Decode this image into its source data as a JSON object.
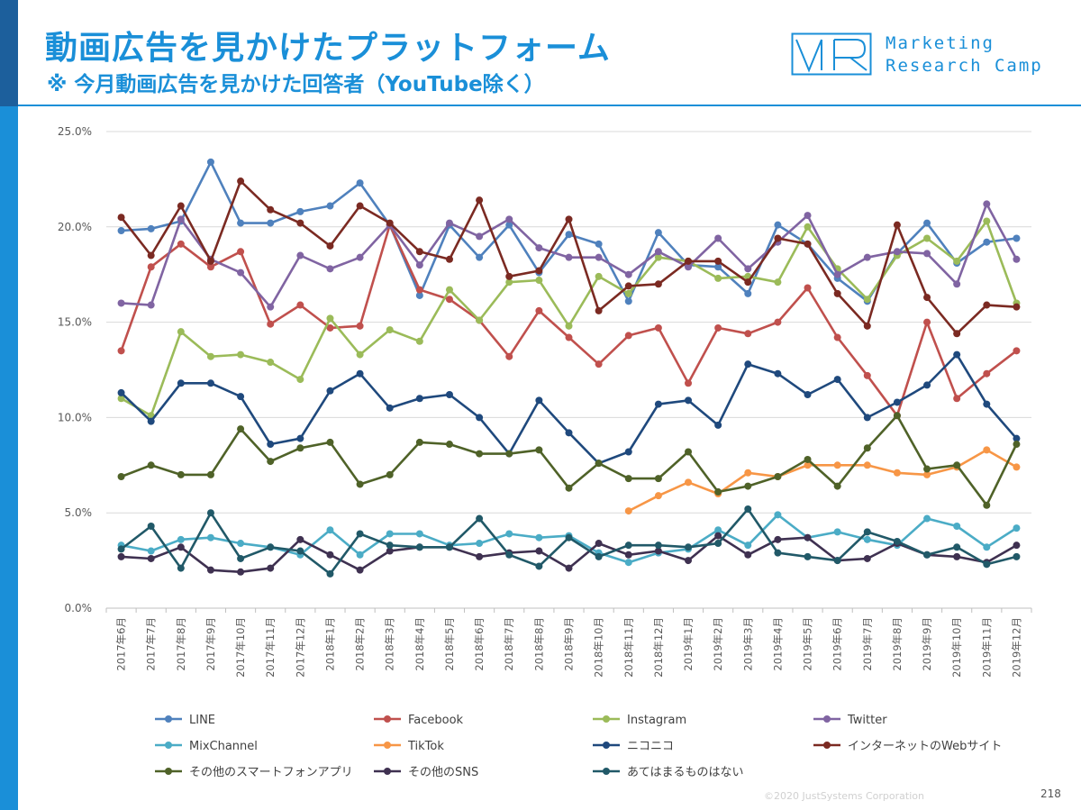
{
  "header": {
    "title": "動画広告を見かけたプラットフォーム",
    "subtitle": "※ 今月動画広告を見かけた回答者（YouTube除く）"
  },
  "logo": {
    "mark": "MR",
    "line1": "Marketing",
    "line2": "Research Camp"
  },
  "footer": {
    "copyright": "©2020 JustSystems Corporation",
    "page": "218"
  },
  "colors": {
    "accent": "#1a8fd8",
    "accent_dark": "#1c5f9c"
  },
  "chart_data": {
    "type": "line",
    "title": "",
    "xlabel": "",
    "ylabel": "",
    "ylim": [
      0,
      25
    ],
    "yticks": [
      "0.0%",
      "5.0%",
      "10.0%",
      "15.0%",
      "20.0%",
      "25.0%"
    ],
    "grid": true,
    "legend_position": "bottom",
    "categories": [
      "2017年6月",
      "2017年7月",
      "2017年8月",
      "2017年9月",
      "2017年10月",
      "2017年11月",
      "2017年12月",
      "2018年1月",
      "2018年2月",
      "2018年3月",
      "2018年4月",
      "2018年5月",
      "2018年6月",
      "2018年7月",
      "2018年8月",
      "2018年9月",
      "2018年10月",
      "2018年11月",
      "2018年12月",
      "2019年1月",
      "2019年2月",
      "2019年3月",
      "2019年4月",
      "2019年5月",
      "2019年6月",
      "2019年7月",
      "2019年8月",
      "2019年9月",
      "2019年10月",
      "2019年11月",
      "2019年12月"
    ],
    "series": [
      {
        "name": "LINE",
        "color": "#4f81bd",
        "values": [
          19.8,
          19.9,
          20.3,
          23.4,
          20.2,
          20.2,
          20.8,
          21.1,
          22.3,
          20.1,
          16.4,
          20.1,
          18.4,
          20.1,
          17.6,
          19.6,
          19.1,
          16.1,
          19.7,
          18.0,
          17.9,
          16.5,
          20.1,
          19.1,
          17.3,
          16.1,
          18.6,
          20.2,
          18.1,
          19.2,
          19.4
        ]
      },
      {
        "name": "Facebook",
        "color": "#c0504d",
        "values": [
          13.5,
          17.9,
          19.1,
          17.9,
          18.7,
          14.9,
          15.9,
          14.7,
          14.8,
          20.1,
          16.7,
          16.2,
          15.1,
          13.2,
          15.6,
          14.2,
          12.8,
          14.3,
          14.7,
          11.8,
          14.7,
          14.4,
          15.0,
          16.8,
          14.2,
          12.2,
          10.1,
          15.0,
          11.0,
          12.3,
          13.5
        ]
      },
      {
        "name": "Instagram",
        "color": "#9bbb59",
        "values": [
          11.0,
          10.1,
          14.5,
          13.2,
          13.3,
          12.9,
          12.0,
          15.2,
          13.3,
          14.6,
          14.0,
          16.7,
          15.1,
          17.1,
          17.2,
          14.8,
          17.4,
          16.5,
          18.4,
          18.2,
          17.3,
          17.4,
          17.1,
          20.0,
          17.8,
          16.2,
          18.5,
          19.4,
          18.2,
          20.3,
          16.0
        ]
      },
      {
        "name": "Twitter",
        "color": "#8064a2",
        "values": [
          16.0,
          15.9,
          20.4,
          18.3,
          17.6,
          15.8,
          18.5,
          17.8,
          18.4,
          20.1,
          18.0,
          20.2,
          19.5,
          20.4,
          18.9,
          18.4,
          18.4,
          17.5,
          18.7,
          17.9,
          19.4,
          17.8,
          19.2,
          20.6,
          17.5,
          18.4,
          18.7,
          18.6,
          17.0,
          21.2,
          18.3
        ]
      },
      {
        "name": "MixChannel",
        "color": "#4bacc6",
        "values": [
          3.3,
          3.0,
          3.6,
          3.7,
          3.4,
          3.2,
          2.8,
          4.1,
          2.8,
          3.9,
          3.9,
          3.3,
          3.4,
          3.9,
          3.7,
          3.8,
          2.9,
          2.4,
          2.9,
          3.1,
          4.1,
          3.3,
          4.9,
          3.7,
          4.0,
          3.6,
          3.3,
          4.7,
          4.3,
          3.2,
          4.2
        ]
      },
      {
        "name": "TikTok",
        "color": "#f79646",
        "values": [
          null,
          null,
          null,
          null,
          null,
          null,
          null,
          null,
          null,
          null,
          null,
          null,
          null,
          null,
          null,
          null,
          null,
          5.1,
          5.9,
          6.6,
          6.0,
          7.1,
          6.9,
          7.5,
          7.5,
          7.5,
          7.1,
          7.0,
          7.4,
          8.3,
          7.4
        ]
      },
      {
        "name": "ニコニコ",
        "color": "#1f497d",
        "values": [
          11.3,
          9.8,
          11.8,
          11.8,
          11.1,
          8.6,
          8.9,
          11.4,
          12.3,
          10.5,
          11.0,
          11.2,
          10.0,
          8.1,
          10.9,
          9.2,
          7.6,
          8.2,
          10.7,
          10.9,
          9.6,
          12.8,
          12.3,
          11.2,
          12.0,
          10.0,
          10.8,
          11.7,
          13.3,
          10.7,
          8.9
        ]
      },
      {
        "name": "インターネットのWebサイト",
        "color": "#7b2a22",
        "values": [
          20.5,
          18.5,
          21.1,
          18.2,
          22.4,
          20.9,
          20.2,
          19.0,
          21.1,
          20.2,
          18.7,
          18.3,
          21.4,
          17.4,
          17.7,
          20.4,
          15.6,
          16.9,
          17.0,
          18.2,
          18.2,
          17.1,
          19.4,
          19.1,
          16.5,
          14.8,
          20.1,
          16.3,
          14.4,
          15.9,
          15.8
        ]
      },
      {
        "name": "その他のスマートフォンアプリ",
        "color": "#4f6228",
        "values": [
          6.9,
          7.5,
          7.0,
          7.0,
          9.4,
          7.7,
          8.4,
          8.7,
          6.5,
          7.0,
          8.7,
          8.6,
          8.1,
          8.1,
          8.3,
          6.3,
          7.6,
          6.8,
          6.8,
          8.2,
          6.1,
          6.4,
          6.9,
          7.8,
          6.4,
          8.4,
          10.1,
          7.3,
          7.5,
          5.4,
          8.6
        ]
      },
      {
        "name": "その他のSNS",
        "color": "#3f3151",
        "values": [
          2.7,
          2.6,
          3.2,
          2.0,
          1.9,
          2.1,
          3.6,
          2.8,
          2.0,
          3.0,
          3.2,
          3.2,
          2.7,
          2.9,
          3.0,
          2.1,
          3.4,
          2.8,
          3.0,
          2.5,
          3.8,
          2.8,
          3.6,
          3.7,
          2.5,
          2.6,
          3.4,
          2.8,
          2.7,
          2.4,
          3.3
        ]
      },
      {
        "name": "あてはまるものはない",
        "color": "#215968",
        "values": [
          3.1,
          4.3,
          2.1,
          5.0,
          2.6,
          3.2,
          3.0,
          1.8,
          3.9,
          3.3,
          3.2,
          3.2,
          4.7,
          2.8,
          2.2,
          3.7,
          2.7,
          3.3,
          3.3,
          3.2,
          3.4,
          5.2,
          2.9,
          2.7,
          2.5,
          4.0,
          3.5,
          2.8,
          3.2,
          2.3,
          2.7
        ]
      }
    ]
  }
}
